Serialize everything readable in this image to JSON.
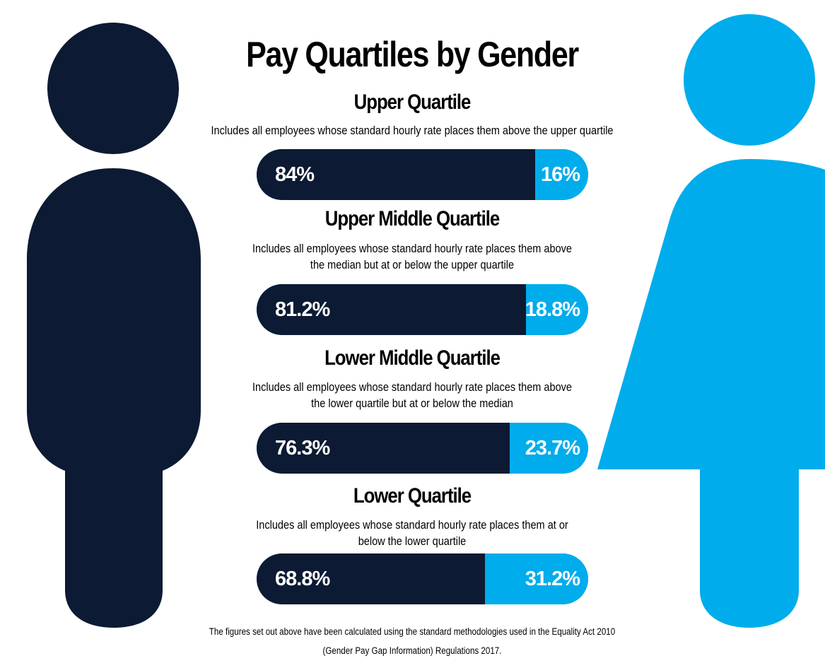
{
  "title": "Pay Quartiles by Gender",
  "colors": {
    "male": "#0c1a33",
    "female": "#00aceb"
  },
  "chart_data": {
    "type": "bar",
    "title": "Pay Quartiles by Gender",
    "stacked": true,
    "orientation": "horizontal",
    "categories": [
      "Upper Quartile",
      "Upper Middle Quartile",
      "Lower Middle Quartile",
      "Lower Quartile"
    ],
    "descriptions": [
      [
        "Includes all employees whose standard hourly rate places them above the upper quartile"
      ],
      [
        "Includes all employees whose standard hourly rate places them above",
        "the median but at or below the upper quartile"
      ],
      [
        "Includes all employees whose standard hourly rate places them above",
        "the lower quartile but at or below the median"
      ],
      [
        "Includes all employees whose standard hourly rate places them at or",
        "below the lower quartile"
      ]
    ],
    "series": [
      {
        "values": [
          84,
          81.2,
          76.3,
          68.8
        ],
        "labels": [
          "84%",
          "81.2%",
          "76.3%",
          "68.8%"
        ],
        "color": "#0c1a33"
      },
      {
        "values": [
          16,
          18.8,
          23.7,
          31.2
        ],
        "labels": [
          "16%",
          "18.8%",
          "23.7%",
          "31.2%"
        ],
        "color": "#00aceb"
      }
    ],
    "xlim": [
      0,
      100
    ]
  },
  "footnote": [
    "The figures set out above have been calculated using the standard methodologies used in the Equality Act 2010",
    "(Gender Pay Gap Information) Regulations 2017."
  ]
}
